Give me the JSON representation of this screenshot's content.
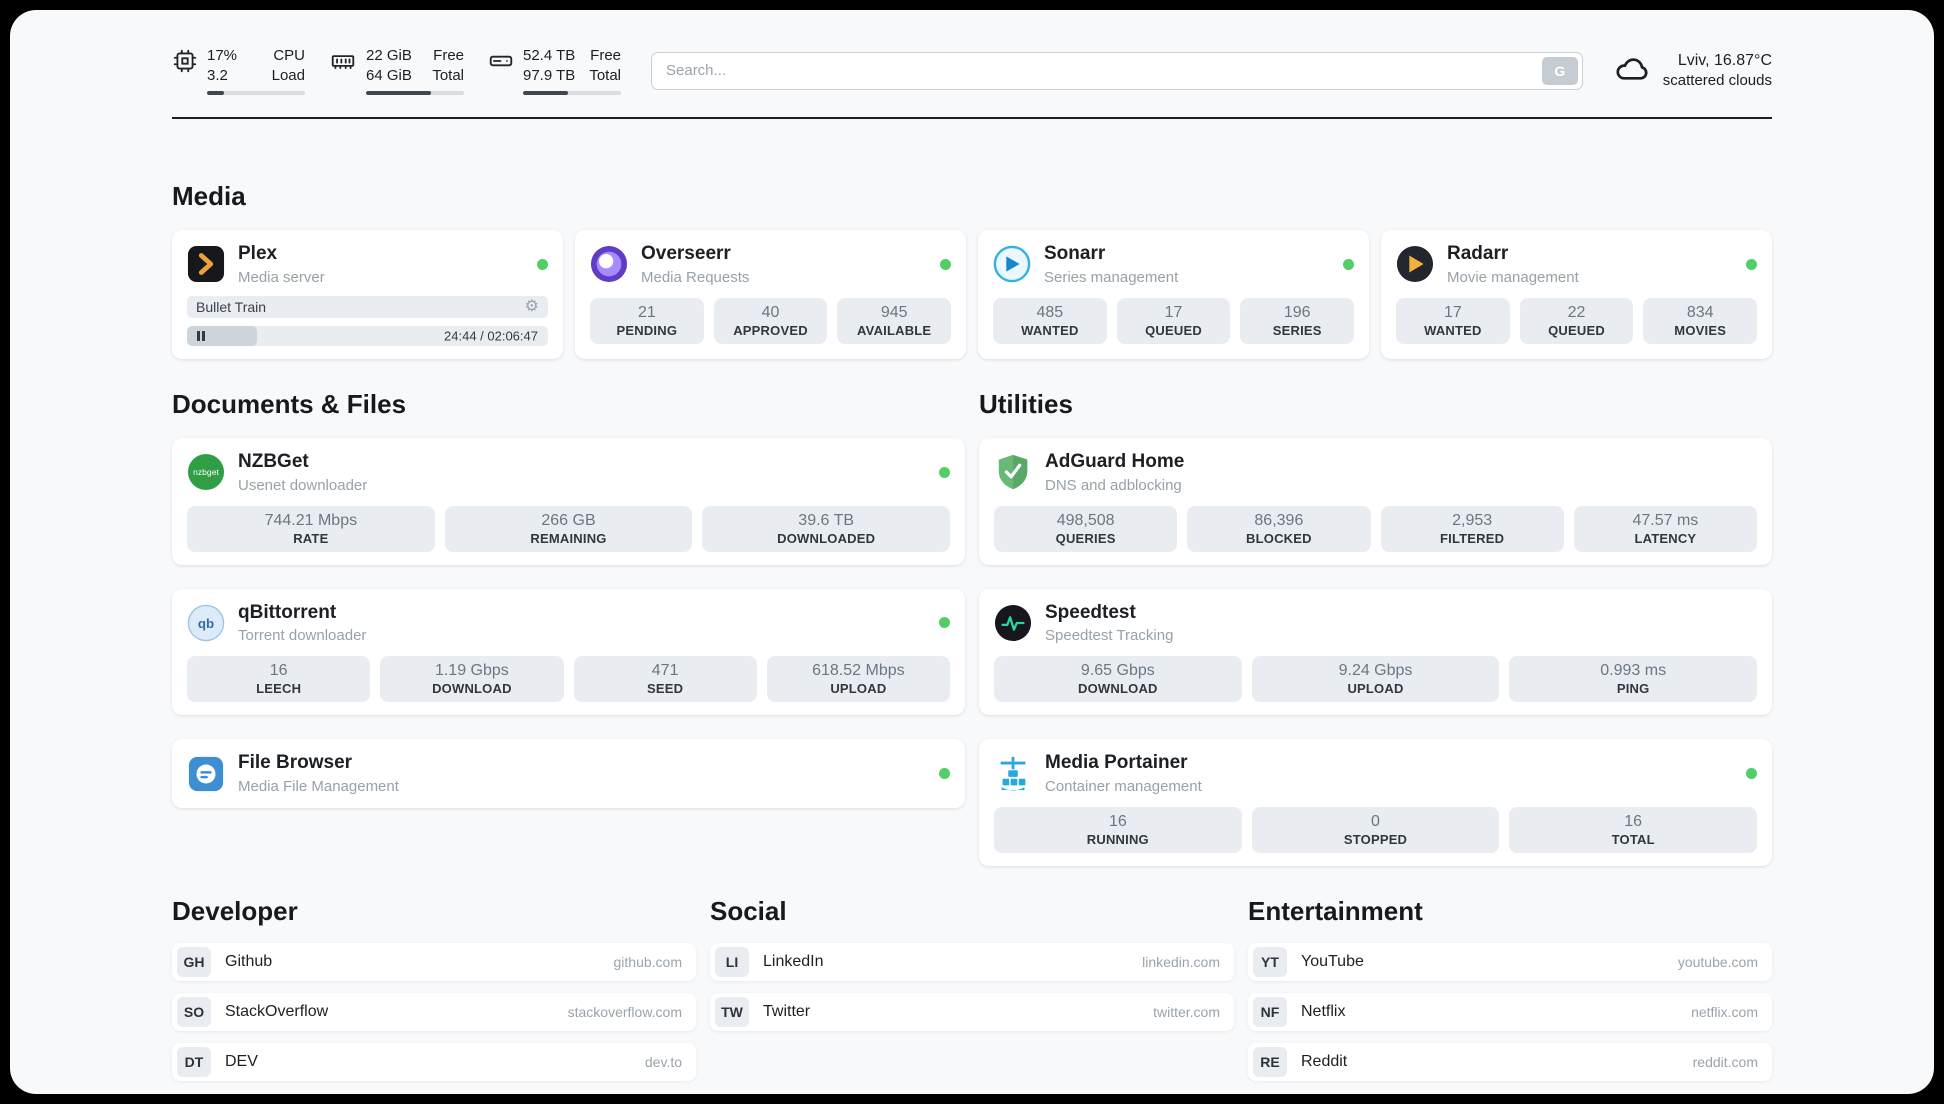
{
  "colors": {
    "status_online": "#51cf66",
    "page_bg": "#f8f9fb",
    "card_bg": "#ffffff",
    "stat_bg": "#e9edf2",
    "accent_plex": "#e8a33d",
    "accent_overseerr": "#5f3dc4",
    "accent_sonarr": "#35b0e0",
    "accent_radarr": "#f5b13d",
    "accent_nzbget": "#2f9e44",
    "accent_qbittorrent": "#356ca5",
    "accent_filebrowser": "#3d8fd1",
    "accent_adguard": "#68b978",
    "accent_speedtest": "#27d7a2",
    "accent_portainer": "#29a8e0"
  },
  "header": {
    "cpu": {
      "icon": "cpu-chip-icon",
      "value_top": "17%",
      "value_bottom": "3.2",
      "label_top": "CPU",
      "label_bottom": "Load",
      "bar_percent": 17
    },
    "ram": {
      "icon": "memory-icon",
      "value_top": "22 GiB",
      "value_bottom": "64 GiB",
      "label_top": "Free",
      "label_bottom": "Total",
      "bar_percent": 66
    },
    "disk": {
      "icon": "hard-drive-icon",
      "value_top": "52.4 TB",
      "value_bottom": "97.9 TB",
      "label_top": "Free",
      "label_bottom": "Total",
      "bar_percent": 46
    },
    "search": {
      "placeholder": "Search...",
      "button_label": "G"
    },
    "weather": {
      "icon": "cloud-icon",
      "location": "Lviv, 16.87°C",
      "condition": "scattered clouds"
    }
  },
  "sections": {
    "media": {
      "title": "Media",
      "plex": {
        "title": "Plex",
        "subtitle": "Media server",
        "status": "online",
        "now_playing": "Bullet Train",
        "progress_percent": 19.5,
        "time": "24:44 / 02:06:47"
      },
      "overseerr": {
        "title": "Overseerr",
        "subtitle": "Media Requests",
        "status": "online",
        "stats": [
          {
            "value": "21",
            "label": "PENDING"
          },
          {
            "value": "40",
            "label": "APPROVED"
          },
          {
            "value": "945",
            "label": "AVAILABLE"
          }
        ]
      },
      "sonarr": {
        "title": "Sonarr",
        "subtitle": "Series management",
        "status": "online",
        "stats": [
          {
            "value": "485",
            "label": "WANTED"
          },
          {
            "value": "17",
            "label": "QUEUED"
          },
          {
            "value": "196",
            "label": "SERIES"
          }
        ]
      },
      "radarr": {
        "title": "Radarr",
        "subtitle": "Movie management",
        "status": "online",
        "stats": [
          {
            "value": "17",
            "label": "WANTED"
          },
          {
            "value": "22",
            "label": "QUEUED"
          },
          {
            "value": "834",
            "label": "MOVIES"
          }
        ]
      }
    },
    "documents": {
      "title": "Documents & Files",
      "nzbget": {
        "title": "NZBGet",
        "subtitle": "Usenet downloader",
        "status": "online",
        "stats": [
          {
            "value": "744.21 Mbps",
            "label": "RATE"
          },
          {
            "value": "266 GB",
            "label": "REMAINING"
          },
          {
            "value": "39.6 TB",
            "label": "DOWNLOADED"
          }
        ]
      },
      "qbittorrent": {
        "title": "qBittorrent",
        "subtitle": "Torrent downloader",
        "status": "online",
        "stats": [
          {
            "value": "16",
            "label": "LEECH"
          },
          {
            "value": "1.19 Gbps",
            "label": "DOWNLOAD"
          },
          {
            "value": "471",
            "label": "SEED"
          },
          {
            "value": "618.52 Mbps",
            "label": "UPLOAD"
          }
        ]
      },
      "filebrowser": {
        "title": "File Browser",
        "subtitle": "Media File Management",
        "status": "online"
      }
    },
    "utilities": {
      "title": "Utilities",
      "adguard": {
        "title": "AdGuard Home",
        "subtitle": "DNS and adblocking",
        "stats": [
          {
            "value": "498,508",
            "label": "QUERIES"
          },
          {
            "value": "86,396",
            "label": "BLOCKED"
          },
          {
            "value": "2,953",
            "label": "FILTERED"
          },
          {
            "value": "47.57 ms",
            "label": "LATENCY"
          }
        ]
      },
      "speedtest": {
        "title": "Speedtest",
        "subtitle": "Speedtest Tracking",
        "stats": [
          {
            "value": "9.65 Gbps",
            "label": "DOWNLOAD"
          },
          {
            "value": "9.24 Gbps",
            "label": "UPLOAD"
          },
          {
            "value": "0.993 ms",
            "label": "PING"
          }
        ]
      },
      "portainer": {
        "title": "Media Portainer",
        "subtitle": "Container management",
        "status": "online",
        "stats": [
          {
            "value": "16",
            "label": "RUNNING"
          },
          {
            "value": "0",
            "label": "STOPPED"
          },
          {
            "value": "16",
            "label": "TOTAL"
          }
        ]
      }
    }
  },
  "bookmarks": [
    {
      "title": "Developer",
      "items": [
        {
          "abbr": "GH",
          "name": "Github",
          "url": "github.com"
        },
        {
          "abbr": "SO",
          "name": "StackOverflow",
          "url": "stackoverflow.com"
        },
        {
          "abbr": "DT",
          "name": "DEV",
          "url": "dev.to"
        }
      ]
    },
    {
      "title": "Social",
      "items": [
        {
          "abbr": "LI",
          "name": "LinkedIn",
          "url": "linkedin.com"
        },
        {
          "abbr": "TW",
          "name": "Twitter",
          "url": "twitter.com"
        }
      ]
    },
    {
      "title": "Entertainment",
      "items": [
        {
          "abbr": "YT",
          "name": "YouTube",
          "url": "youtube.com"
        },
        {
          "abbr": "NF",
          "name": "Netflix",
          "url": "netflix.com"
        },
        {
          "abbr": "RE",
          "name": "Reddit",
          "url": "reddit.com"
        }
      ]
    }
  ]
}
